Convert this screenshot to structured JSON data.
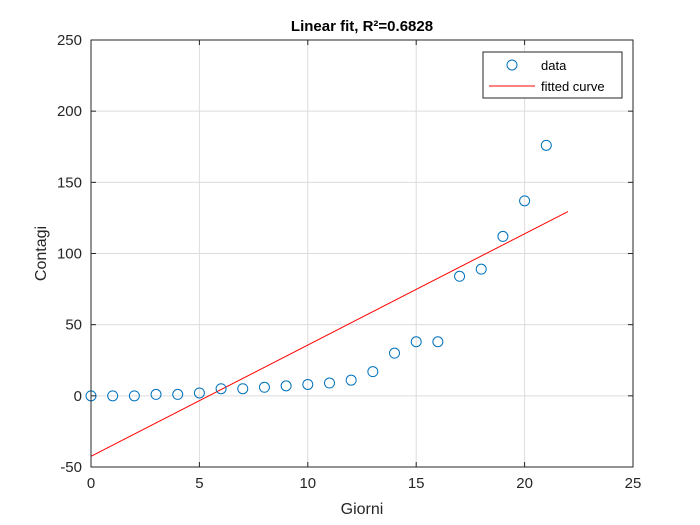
{
  "chart_data": {
    "type": "scatter",
    "title": "Linear fit, R²=0.6828",
    "xlabel": "Giorni",
    "ylabel": "Contagi",
    "xlim": [
      0,
      25
    ],
    "ylim": [
      -50,
      250
    ],
    "xticks": [
      0,
      5,
      10,
      15,
      20,
      25
    ],
    "yticks": [
      -50,
      0,
      50,
      100,
      150,
      200,
      250
    ],
    "xtick_labels": [
      "0",
      "5",
      "10",
      "15",
      "20",
      "25"
    ],
    "ytick_labels": [
      "-50",
      "0",
      "50",
      "100",
      "150",
      "200",
      "250"
    ],
    "grid": true,
    "legend_position": "top-right",
    "series": [
      {
        "name": "data",
        "kind": "markers",
        "marker": "circle",
        "color": "#0072BD",
        "x": [
          0,
          1,
          2,
          3,
          4,
          5,
          6,
          7,
          8,
          9,
          10,
          11,
          12,
          13,
          14,
          15,
          16,
          17,
          18,
          19,
          20,
          21
        ],
        "y": [
          0,
          0,
          0,
          1,
          1,
          2,
          5,
          5,
          6,
          7,
          8,
          9,
          11,
          17,
          30,
          38,
          38,
          84,
          89,
          112,
          137,
          176
        ]
      },
      {
        "name": "fitted curve",
        "kind": "line",
        "color": "#FF0000",
        "x": [
          0,
          22
        ],
        "y": [
          -42.5,
          129.5
        ]
      }
    ]
  }
}
